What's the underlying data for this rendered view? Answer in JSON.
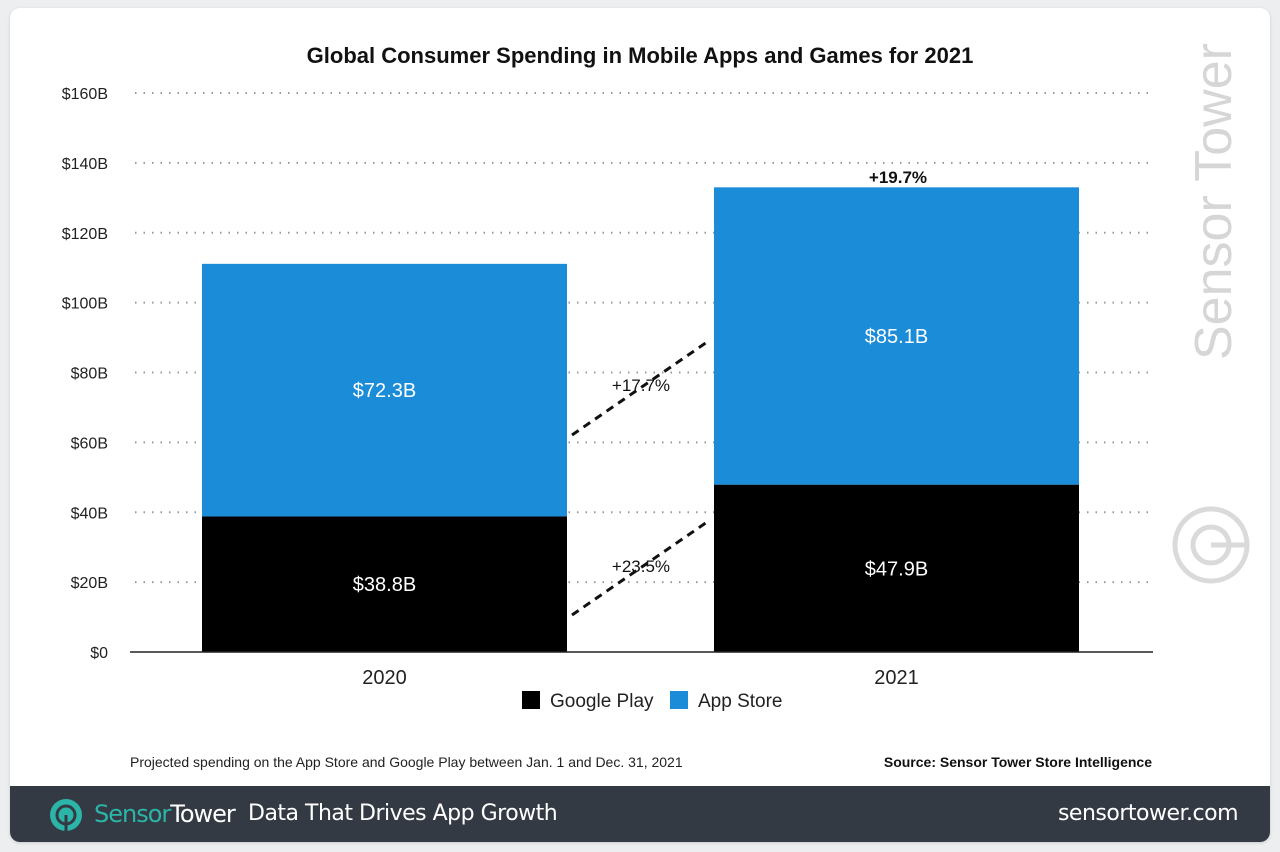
{
  "chart_data": {
    "type": "bar",
    "stacked": true,
    "title": "Global Consumer Spending in Mobile Apps and Games for 2021",
    "categories": [
      "2020",
      "2021"
    ],
    "series": [
      {
        "name": "Google Play",
        "values": [
          38.8,
          47.9
        ],
        "labels": [
          "$38.8B",
          "$47.9B"
        ],
        "color": "#000000"
      },
      {
        "name": "App Store",
        "values": [
          72.3,
          85.1
        ],
        "labels": [
          "$72.3B",
          "$85.1B"
        ],
        "color": "#1a8cd8"
      }
    ],
    "ylim": [
      0,
      160
    ],
    "yticks": [
      0,
      20,
      40,
      60,
      80,
      100,
      120,
      140,
      160
    ],
    "ytick_labels": [
      "$0",
      "$20B",
      "$40B",
      "$60B",
      "$80B",
      "$100B",
      "$120B",
      "$140B",
      "$160B"
    ],
    "grid": "dotted horizontal",
    "legend_position": "bottom",
    "annotations": {
      "app_store_growth": "+17.7%",
      "google_play_growth": "+23.5%",
      "total_growth": "+19.7%"
    },
    "footnote": "Projected spending on the App Store and Google Play between Jan. 1 and Dec. 31, 2021",
    "source": "Source: Sensor Tower Store Intelligence",
    "watermark": "Sensor Tower"
  },
  "banner": {
    "brand_part1": "Sensor",
    "brand_part2": "Tower",
    "tagline": "Data That Drives App Growth",
    "url": "sensortower.com",
    "accent_color": "#2bb5a8"
  }
}
